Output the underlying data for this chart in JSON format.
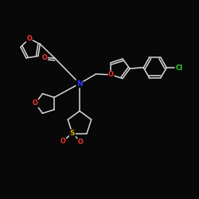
{
  "bg_color": "#080808",
  "bond_color": "#d8d8d8",
  "atom_colors": {
    "O": "#ff3333",
    "N": "#3333ff",
    "S": "#ccaa00",
    "Cl": "#33cc33",
    "C": "#d8d8d8"
  }
}
